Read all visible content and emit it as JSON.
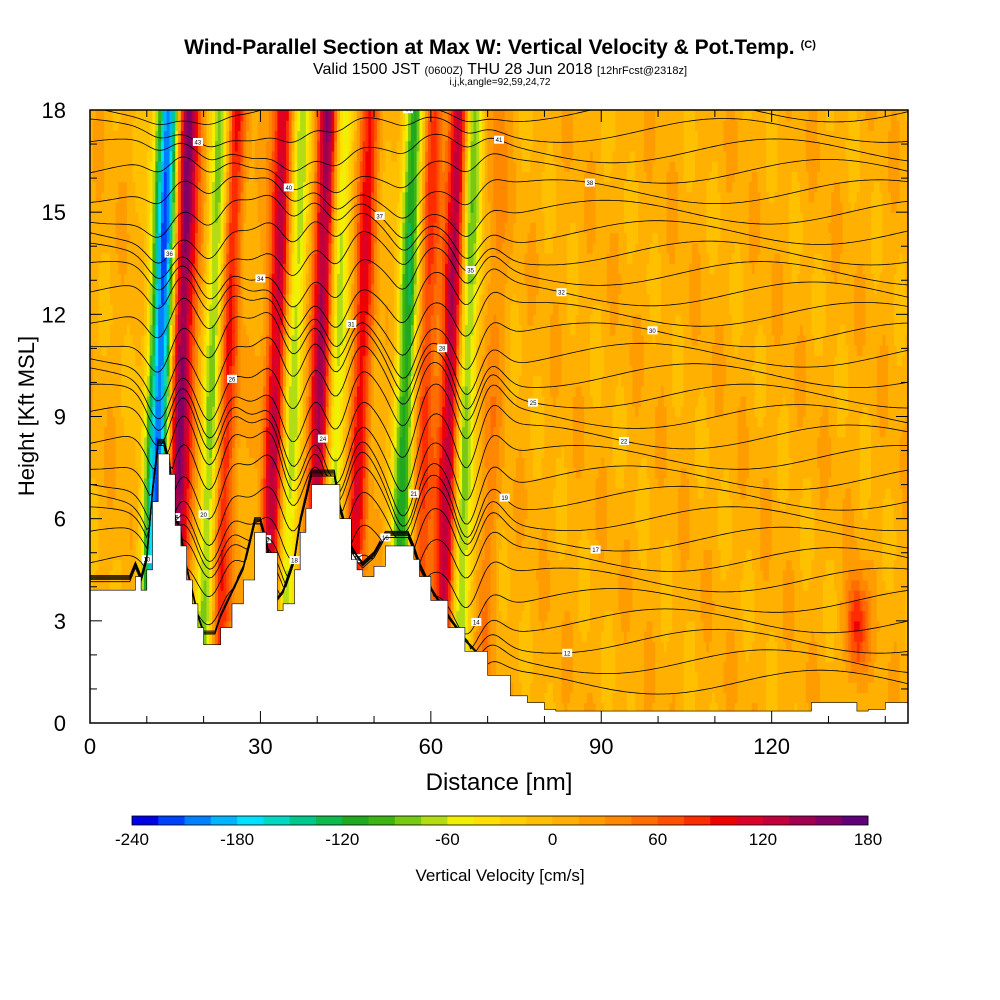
{
  "header": {
    "title": "Wind-Parallel Section at Max W: Vertical Velocity & Pot.Temp.",
    "title_tag": "(C)",
    "valid_prefix": "Valid 1500 JST",
    "valid_z": "(0600Z)",
    "valid_date": "THU 28 Jun 2018",
    "forecast": "[12hrFcst@2318z]",
    "indices": "i,j,k,angle=92,59,24,72"
  },
  "chart_data": {
    "type": "heatmap",
    "xlabel": "Distance [nm]",
    "ylabel": "Height [Kft MSL]",
    "xlim": [
      0,
      144
    ],
    "ylim": [
      0,
      18
    ],
    "xticks": [
      0,
      30,
      60,
      90,
      120
    ],
    "yticks": [
      0,
      3,
      6,
      9,
      12,
      15,
      18
    ],
    "colorbar": {
      "label": "Vertical Velocity [cm/s]",
      "tick_labels": [
        -240,
        -180,
        -120,
        -60,
        0,
        60,
        120,
        180
      ],
      "levels": [
        -240,
        -225,
        -210,
        -195,
        -180,
        -165,
        -150,
        -135,
        -120,
        -105,
        -90,
        -75,
        -60,
        -45,
        -30,
        -15,
        0,
        15,
        30,
        45,
        60,
        75,
        90,
        105,
        120,
        135,
        150,
        165,
        180
      ],
      "colors": [
        "#0000e6",
        "#0040ff",
        "#0080ff",
        "#00b4ff",
        "#00e0ff",
        "#00d8c0",
        "#00c88c",
        "#10b850",
        "#20a820",
        "#3cb414",
        "#78c814",
        "#b4dc14",
        "#f0f000",
        "#ffe000",
        "#ffd000",
        "#ffc000",
        "#ffb000",
        "#ff9c00",
        "#ff8800",
        "#ff6c00",
        "#ff5000",
        "#ff2c00",
        "#f00000",
        "#dc0028",
        "#c0003c",
        "#a00050",
        "#800064",
        "#600078"
      ]
    },
    "terrain_kft": [
      [
        0,
        3.9
      ],
      [
        7,
        3.9
      ],
      [
        8,
        4.3
      ],
      [
        9,
        3.9
      ],
      [
        10,
        4.5
      ],
      [
        11,
        6.5
      ],
      [
        12,
        7.9
      ],
      [
        13,
        7.9
      ],
      [
        14,
        7.3
      ],
      [
        15,
        5.8
      ],
      [
        16,
        5.2
      ],
      [
        17,
        4.2
      ],
      [
        18,
        3.5
      ],
      [
        19,
        2.8
      ],
      [
        20,
        2.3
      ],
      [
        22,
        2.3
      ],
      [
        23,
        2.8
      ],
      [
        25,
        3.5
      ],
      [
        27,
        4.2
      ],
      [
        29,
        5.6
      ],
      [
        30,
        5.6
      ],
      [
        31,
        5.0
      ],
      [
        33,
        3.3
      ],
      [
        34,
        3.5
      ],
      [
        36,
        4.5
      ],
      [
        37,
        5.6
      ],
      [
        38,
        6.3
      ],
      [
        39,
        7.0
      ],
      [
        43,
        7.0
      ],
      [
        44,
        6.0
      ],
      [
        46,
        4.8
      ],
      [
        47,
        4.5
      ],
      [
        48,
        4.3
      ],
      [
        50,
        4.6
      ],
      [
        52,
        5.2
      ],
      [
        56,
        5.2
      ],
      [
        57,
        4.8
      ],
      [
        58,
        4.3
      ],
      [
        60,
        3.6
      ],
      [
        63,
        2.8
      ],
      [
        66,
        2.1
      ],
      [
        70,
        1.4
      ],
      [
        74,
        0.8
      ],
      [
        77,
        0.6
      ],
      [
        80,
        0.4
      ],
      [
        82,
        0.35
      ],
      [
        126,
        0.35
      ],
      [
        127,
        0.6
      ],
      [
        131,
        0.6
      ],
      [
        133,
        0.6
      ],
      [
        135,
        0.35
      ],
      [
        137,
        0.4
      ],
      [
        140,
        0.6
      ],
      [
        144,
        0.7
      ]
    ],
    "vertical_velocity_bands": [
      {
        "x": 12.5,
        "w": -240
      },
      {
        "x": 15.5,
        "w": 180
      },
      {
        "x": 21.5,
        "w": -90
      },
      {
        "x": 24.0,
        "w": 90
      },
      {
        "x": 32.5,
        "w": 120
      },
      {
        "x": 35.5,
        "w": -75
      },
      {
        "x": 40.5,
        "w": 150
      },
      {
        "x": 43.0,
        "w": -90
      },
      {
        "x": 47.5,
        "w": 90
      },
      {
        "x": 55.5,
        "w": -120
      },
      {
        "x": 59.0,
        "w": 75
      },
      {
        "x": 63.5,
        "w": 135
      },
      {
        "x": 66.0,
        "w": -105
      },
      {
        "x": 70.5,
        "w": 30
      },
      {
        "x": 135.0,
        "w": 90
      }
    ],
    "isentrope_labels": [
      "10",
      "11",
      "12",
      "13",
      "14",
      "15",
      "16",
      "17",
      "18",
      "19",
      "20",
      "21",
      "22",
      "24",
      "25",
      "26",
      "28",
      "30",
      "31",
      "32",
      "34",
      "35",
      "36",
      "37",
      "38",
      "40",
      "41",
      "43",
      "44"
    ]
  }
}
